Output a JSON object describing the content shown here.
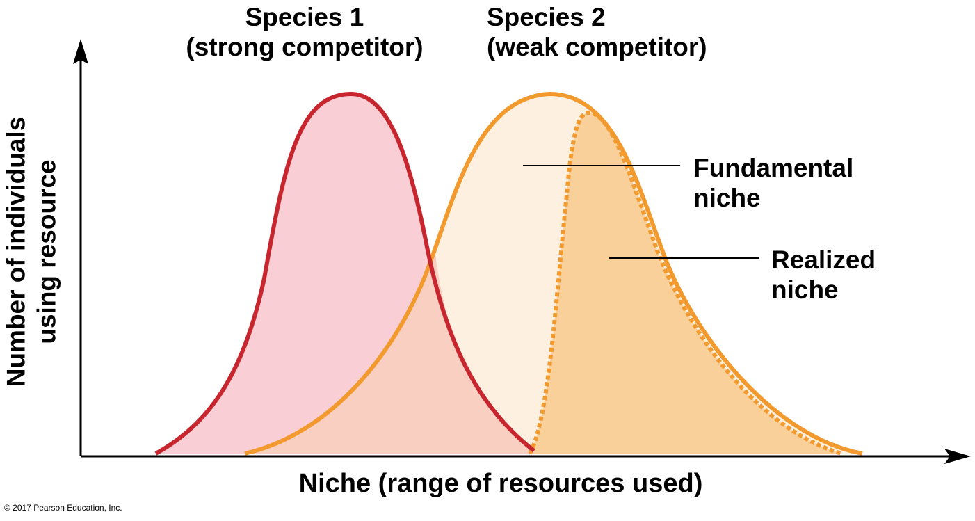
{
  "species": [
    {
      "name": "Species 1",
      "descriptor": "(strong competitor)",
      "color": "#c8262f",
      "fill": "#f8cbd1"
    },
    {
      "name": "Species 2",
      "descriptor": "(weak competitor)",
      "color": "#f29a2e",
      "fill": "#fdf0e0"
    }
  ],
  "niches": {
    "fundamental": {
      "line1": "Fundamental",
      "line2": "niche"
    },
    "realized": {
      "line1": "Realized",
      "line2": "niche",
      "fill": "#f9d09a"
    }
  },
  "axes": {
    "x_label": "Niche (range of resources used)",
    "y_label_line1": "Number of individuals",
    "y_label_line2": "using resource"
  },
  "copyright": "© 2017 Pearson Education, Inc."
}
